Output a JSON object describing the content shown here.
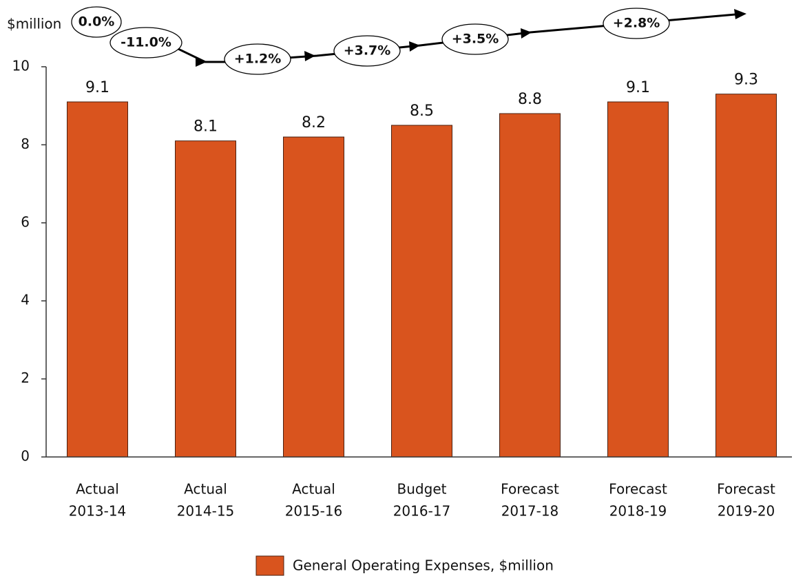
{
  "chart_data": {
    "type": "bar",
    "y_label": "$million",
    "categories": [
      [
        "Actual",
        "2013-14"
      ],
      [
        "Actual",
        "2014-15"
      ],
      [
        "Actual",
        "2015-16"
      ],
      [
        "Budget",
        "2016-17"
      ],
      [
        "Forecast",
        "2017-18"
      ],
      [
        "Forecast",
        "2018-19"
      ],
      [
        "Forecast",
        "2019-20"
      ]
    ],
    "series": [
      {
        "name": "General Operating Expenses, $million",
        "color": "#d9541e",
        "values": [
          9.1,
          8.1,
          8.2,
          8.5,
          8.8,
          9.1,
          9.3
        ]
      }
    ],
    "annotations": [
      "0.0%",
      "-11.0%",
      "+1.2%",
      "+3.7%",
      "+3.5%",
      "+2.8%"
    ],
    "ylim": [
      0,
      10
    ],
    "yticks": [
      0,
      2,
      4,
      6,
      8,
      10
    ],
    "grid": false,
    "legend": "bottom"
  }
}
